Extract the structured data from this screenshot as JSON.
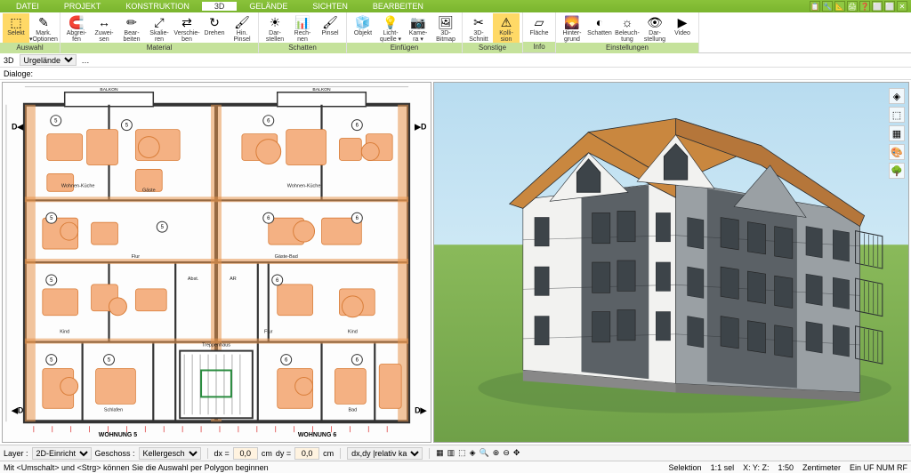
{
  "menu": {
    "items": [
      "DATEI",
      "PROJEKT",
      "KONSTRUKTION",
      "3D",
      "GELÄNDE",
      "SICHTEN",
      "BEARBEITEN"
    ],
    "active": 3
  },
  "titletools": [
    "📋",
    "🔧",
    "📐",
    "🖨",
    "❓",
    "⬜",
    "⬜",
    "✕"
  ],
  "ribbon": [
    {
      "label": "Auswahl",
      "btns": [
        {
          "ic": "⬚",
          "lb": "Selekt",
          "hl": true
        },
        {
          "ic": "✎",
          "lb": "Mark.\n▾Optionen"
        }
      ]
    },
    {
      "label": "Material",
      "btns": [
        {
          "ic": "🧲",
          "lb": "Abgrei-\nfen"
        },
        {
          "ic": "↔",
          "lb": "Zuwei-\nsen"
        },
        {
          "ic": "✏",
          "lb": "Bear-\nbeiten"
        },
        {
          "ic": "⤢",
          "lb": "Skalie-\nren"
        },
        {
          "ic": "⇄",
          "lb": "Verschie-\nben"
        },
        {
          "ic": "↻",
          "lb": "Drehen"
        },
        {
          "ic": "🖌",
          "lb": "Hin.\nPinsel"
        }
      ]
    },
    {
      "label": "Schatten",
      "btns": [
        {
          "ic": "☀",
          "lb": "Dar-\nstellen"
        },
        {
          "ic": "📊",
          "lb": "Rech-\nnen"
        },
        {
          "ic": "🖌",
          "lb": "Pinsel"
        }
      ]
    },
    {
      "label": "Einfügen",
      "btns": [
        {
          "ic": "🧊",
          "lb": "Objekt"
        },
        {
          "ic": "💡",
          "lb": "Licht-\nquelle ▾"
        },
        {
          "ic": "📷",
          "lb": "Kame-\nra ▾"
        },
        {
          "ic": "🖼",
          "lb": "3D-\nBitmap"
        }
      ]
    },
    {
      "label": "Sonstige",
      "btns": [
        {
          "ic": "✂",
          "lb": "3D-\nSchnitt"
        },
        {
          "ic": "⚠",
          "lb": "Kolli-\nsion",
          "hl": true
        }
      ]
    },
    {
      "label": "Info",
      "btns": [
        {
          "ic": "▱",
          "lb": "Fläche"
        }
      ]
    },
    {
      "label": "Einstellungen",
      "btns": [
        {
          "ic": "🌄",
          "lb": "Hinter-\ngrund"
        },
        {
          "ic": "◐",
          "lb": "Schatten"
        },
        {
          "ic": "☼",
          "lb": "Beleuch-\ntung"
        },
        {
          "ic": "👁",
          "lb": "Dar-\nstellung"
        },
        {
          "ic": "▶",
          "lb": "Video"
        }
      ]
    }
  ],
  "subbar": {
    "view": "3D",
    "layer": "Urgelände"
  },
  "dialoge": "Dialoge:",
  "bottom": {
    "layer_lbl": "Layer :",
    "layer": "2D-Einricht",
    "geschoss_lbl": "Geschoss :",
    "geschoss": "Kellergesch",
    "dx": "dx =",
    "dy": "dy =",
    "val": "0,0",
    "unit": "cm",
    "mode": "dx,dy |relativ ka"
  },
  "status": {
    "hint": "Mit <Umschalt> und <Strg> können Sie die Auswahl per Polygon beginnen",
    "sel": "Selektion",
    "scale1": "1:1 sel",
    "xyz": "X:          Y:          Z:",
    "scale2": "1:50",
    "unit": "Zentimeter",
    "flags": "Ein   UF NUM RF"
  },
  "plan": {
    "apt_labels": [
      "WOHNUNG 5",
      "WOHNUNG 6"
    ],
    "balkon": "BALKON",
    "room_badges": [
      "5",
      "5",
      "5",
      "5",
      "5",
      "5",
      "5",
      "6",
      "6",
      "6",
      "6",
      "6",
      "6",
      "6"
    ],
    "markers": [
      "D◀",
      "◀D",
      "D▶",
      "▶D"
    ],
    "rooms": [
      "Wohnen-Küche",
      "Gäste",
      "Wohnen-Küche",
      "Flur",
      "Gäste-Bad",
      "Kind",
      "Kind",
      "Schlafen",
      "Bad",
      "Flur",
      "Abst.",
      "AR",
      "Treppenhaus"
    ],
    "colors": {
      "wall": "#333",
      "wall_hatch": "#e8954f",
      "furn": "#f4b183",
      "furn_stroke": "#d97e3a",
      "accent_red": "#d44",
      "accent_green": "#2a8c3f"
    }
  },
  "view3d": {
    "roof": "#c9873f",
    "wall_light": "#f2f2f0",
    "wall_dark": "#5b6166",
    "wall_mid": "#9aa0a4",
    "trim": "#2b2f33",
    "window": "#3d4449",
    "sky_top": "#b8dcf0",
    "ground": "#7fae55"
  },
  "sidetools": [
    "◈",
    "⬚",
    "▦",
    "🎨",
    "🌳"
  ]
}
